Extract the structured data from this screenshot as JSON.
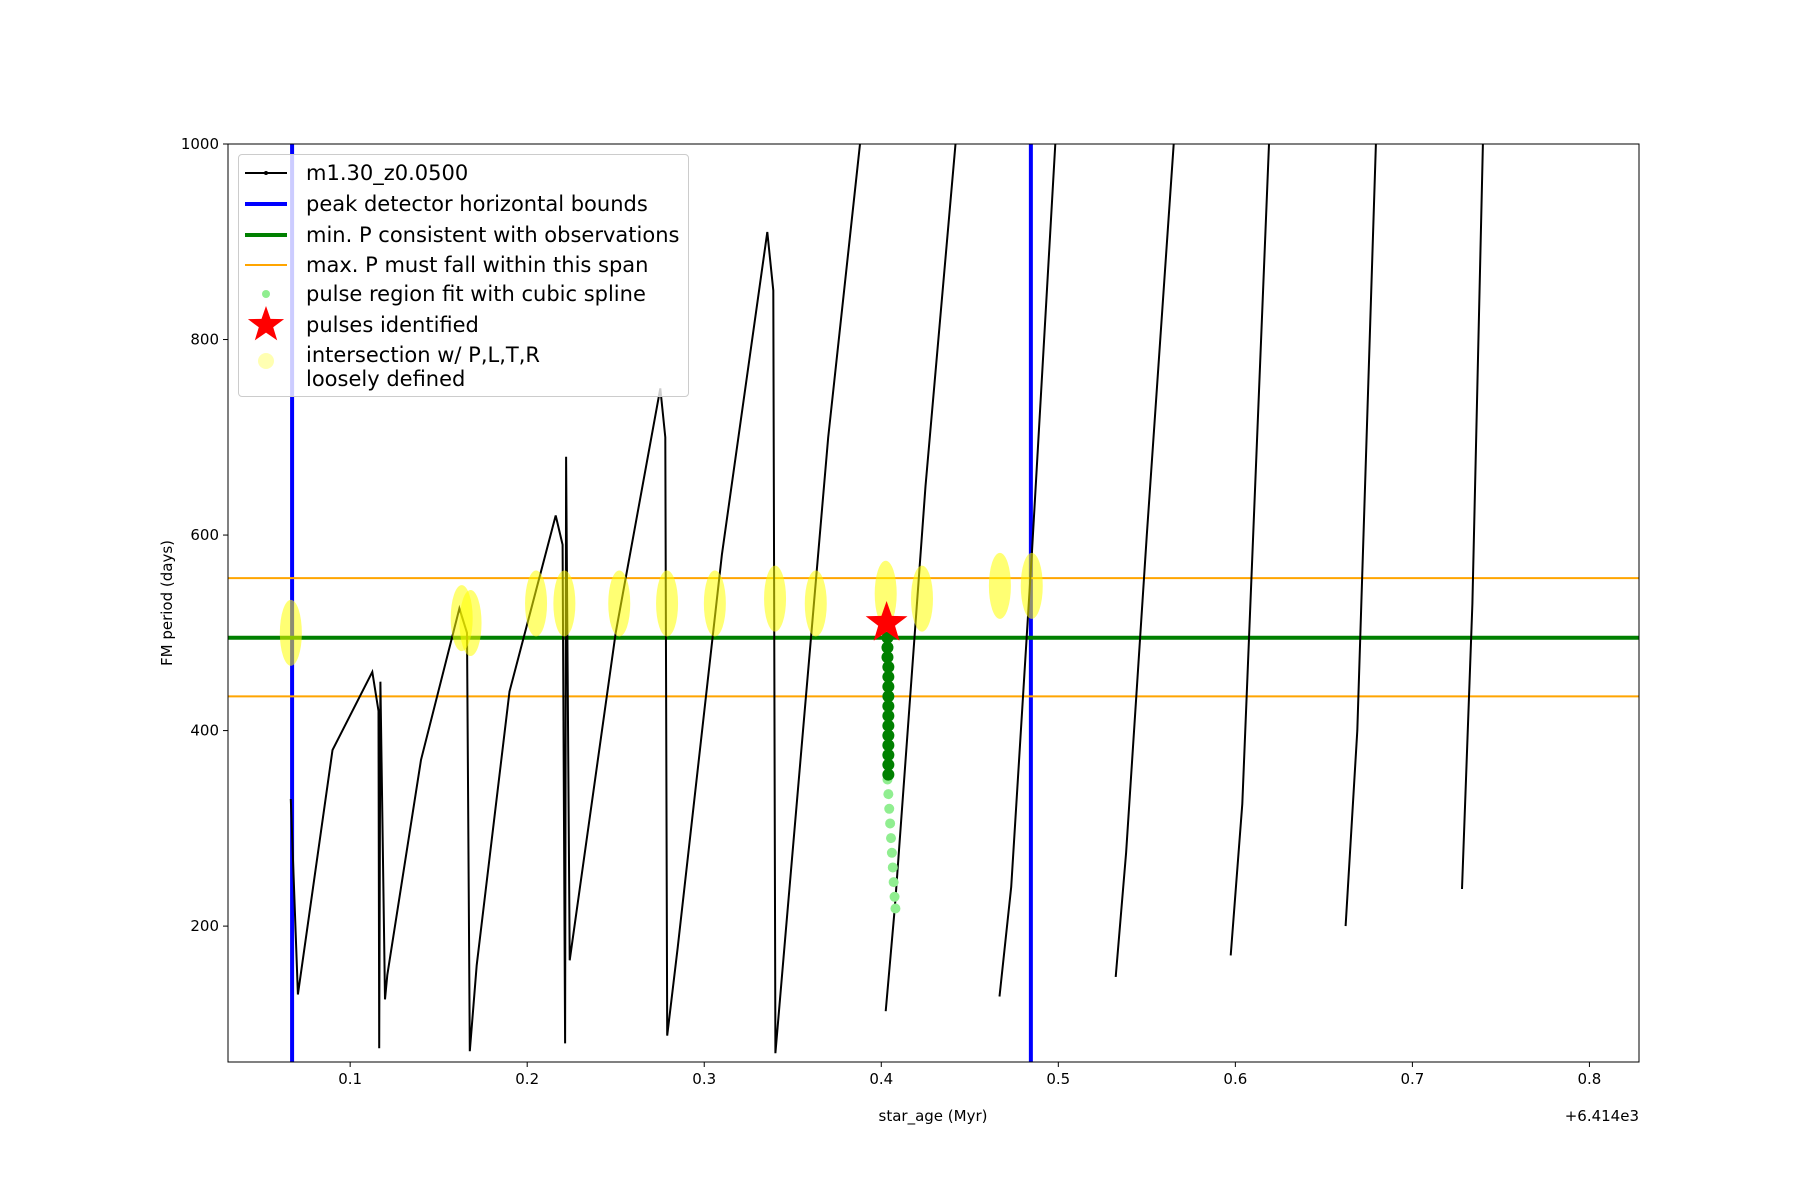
{
  "chart_data": {
    "type": "line",
    "xlabel": "star_age (Myr)",
    "ylabel": "FM period (days)",
    "x_offset_label": "+6.414e3",
    "xlim": [
      0.031,
      0.828
    ],
    "ylim": [
      61,
      1000
    ],
    "xticks": [
      0.1,
      0.2,
      0.3,
      0.4,
      0.5,
      0.6,
      0.7,
      0.8
    ],
    "yticks": [
      200,
      400,
      600,
      800,
      1000
    ],
    "series": [
      {
        "name": "m1.30_z0.0500",
        "style": "line-dots",
        "color": "#000000",
        "linewidth": 2,
        "x": [
          0.0665,
          0.0705,
          0.09,
          0.1125,
          0.116,
          0.1164,
          0.1171,
          0.1197,
          0.121,
          0.14,
          0.1617,
          0.166,
          0.1676,
          0.1715,
          0.19,
          0.2161,
          0.22,
          0.2214,
          0.222,
          0.224,
          0.25,
          0.2752,
          0.278,
          0.2791,
          0.285,
          0.31,
          0.3356,
          0.339,
          0.3402,
          0.3461,
          0.37,
          0.388,
          0.4025,
          0.4025,
          0.4077,
          0.425,
          0.4419,
          0.4668,
          0.4668,
          0.4734,
          0.485,
          0.4983,
          0.5324,
          0.5324,
          0.5383,
          0.55,
          0.5652,
          0.5974,
          0.5974,
          0.6039,
          0.619,
          0.6623,
          0.6623,
          0.6689,
          0.6794,
          0.728,
          0.728,
          0.7339,
          0.7398
        ],
        "values": [
          330,
          130,
          380,
          460,
          420,
          75,
          450,
          125,
          150,
          370,
          525,
          500,
          72,
          160,
          440,
          620,
          590,
          80,
          680,
          165,
          500,
          750,
          700,
          88,
          178,
          580,
          910,
          850,
          70,
          195,
          700,
          1000,
          null,
          113,
          220,
          650,
          1000,
          null,
          128,
          240,
          580,
          1000,
          null,
          148,
          275,
          600,
          1000,
          null,
          170,
          325,
          1000,
          null,
          200,
          400,
          1000,
          null,
          238,
          530,
          1000
        ]
      },
      {
        "name": "peak detector horizontal bounds",
        "style": "vline",
        "color": "#0000ff",
        "linewidth": 4,
        "x": [
          0.0672,
          0.4845
        ]
      },
      {
        "name": "min. P consistent with observations",
        "style": "hline",
        "color": "#008000",
        "linewidth": 4,
        "values": [
          495
        ]
      },
      {
        "name": "max. P must fall within this span",
        "style": "hline",
        "color": "#ffa500",
        "linewidth": 2,
        "values": [
          556,
          435
        ]
      },
      {
        "name": "pulse region fit with cubic spline",
        "style": "scatter",
        "color": "#90ee90",
        "size": 5,
        "x": [
          0.4035,
          0.404,
          0.4045,
          0.405,
          0.4055,
          0.406,
          0.4065,
          0.407,
          0.4075,
          0.408
        ],
        "values": [
          350,
          335,
          320,
          305,
          290,
          275,
          260,
          245,
          230,
          218
        ]
      },
      {
        "style": "scatter",
        "color": "#008000",
        "size": 6,
        "x": [
          0.4035,
          0.4035,
          0.4035,
          0.404,
          0.404,
          0.404,
          0.404,
          0.404,
          0.404,
          0.404,
          0.404,
          0.404,
          0.404,
          0.404,
          0.404
        ],
        "values": [
          495,
          485,
          475,
          465,
          455,
          445,
          435,
          425,
          415,
          405,
          395,
          385,
          375,
          365,
          355
        ]
      },
      {
        "name": "pulses identified",
        "style": "star",
        "color": "#ff0000",
        "size": 22,
        "x": [
          0.403
        ],
        "values": [
          510
        ]
      },
      {
        "name": "intersection w/ P,L,T,R\nloosely defined",
        "style": "blob",
        "color": "#ffff00",
        "size": 11,
        "x": [
          0.0665,
          0.163,
          0.168,
          0.205,
          0.221,
          0.252,
          0.279,
          0.306,
          0.34,
          0.363,
          0.4025,
          0.423,
          0.467,
          0.485
        ],
        "values": [
          500,
          515,
          510,
          530,
          530,
          530,
          530,
          530,
          535,
          530,
          540,
          535,
          548,
          548
        ]
      }
    ]
  }
}
